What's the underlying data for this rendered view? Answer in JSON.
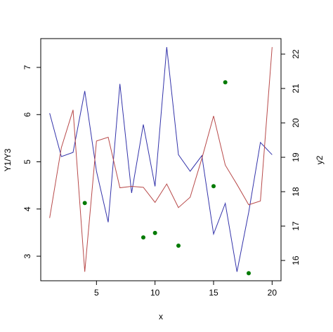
{
  "chart_data": {
    "type": "line",
    "xlabel": "x",
    "ylabel": "Y1/Y3",
    "y2label": "y2",
    "x": [
      1,
      2,
      3,
      4,
      5,
      6,
      7,
      8,
      9,
      10,
      11,
      12,
      13,
      14,
      15,
      16,
      17,
      18,
      19,
      20
    ],
    "xlim": [
      0.24,
      20.76
    ],
    "xticks": [
      5,
      10,
      15,
      20
    ],
    "ylim": [
      2.48,
      7.61
    ],
    "yticks": [
      3,
      4,
      5,
      6,
      7
    ],
    "y2lim": [
      15.41,
      22.45
    ],
    "y2ticks": [
      16,
      17,
      18,
      19,
      20,
      21,
      22
    ],
    "series": [
      {
        "type": "line",
        "color": "#3333aa",
        "values": [
          6.03,
          5.11,
          5.2,
          6.5,
          4.8,
          3.72,
          6.65,
          4.34,
          5.79,
          4.48,
          7.43,
          5.15,
          4.8,
          5.13,
          3.47,
          4.12,
          2.67,
          3.93,
          5.41,
          5.15
        ]
      },
      {
        "type": "line",
        "color": "#b84a4a",
        "values": [
          3.81,
          5.3,
          6.1,
          2.67,
          5.44,
          5.52,
          4.45,
          4.48,
          4.46,
          4.14,
          4.53,
          4.03,
          4.25,
          5.07,
          5.97,
          4.93,
          4.52,
          4.09,
          4.17,
          7.43
        ]
      },
      {
        "type": "points",
        "axis": "y2",
        "color": "#007a00",
        "values": [
          null,
          null,
          null,
          17.67,
          null,
          null,
          null,
          null,
          16.67,
          16.8,
          null,
          16.43,
          null,
          null,
          18.16,
          21.18,
          null,
          15.63,
          null,
          null
        ]
      }
    ]
  }
}
